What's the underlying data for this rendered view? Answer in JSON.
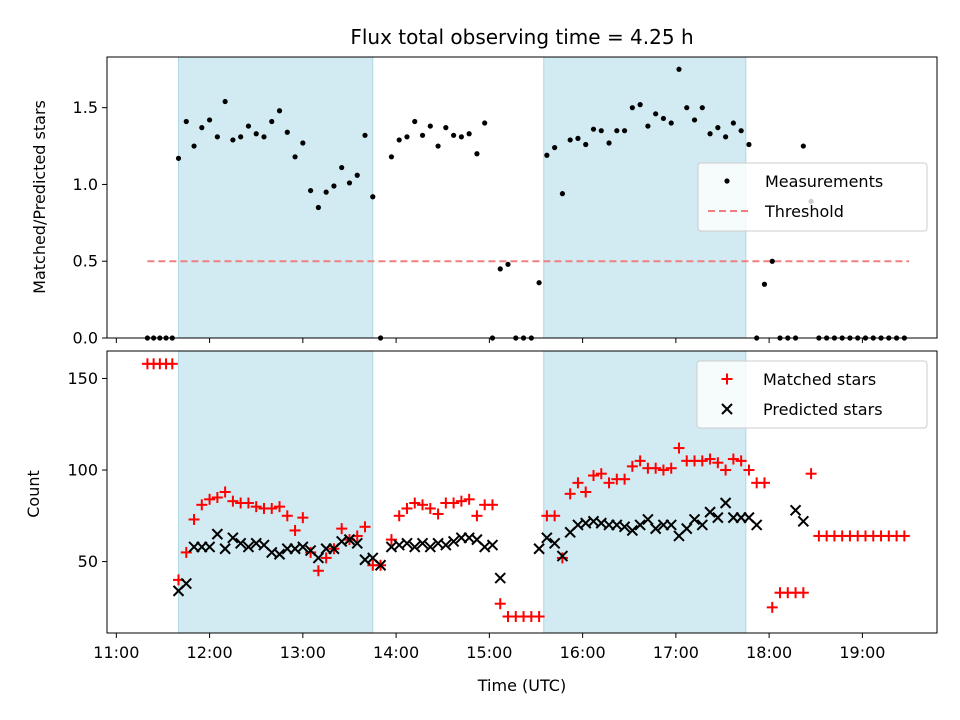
{
  "figure": {
    "title": "Flux total observing time = 4.25 h",
    "xlabel": "Time (UTC)"
  },
  "chart_data": [
    {
      "type": "scatter",
      "title": "Flux total observing time = 4.25 h",
      "ylabel": "Matched/Predicted stars",
      "xlim": [
        "10:54",
        "19:48"
      ],
      "ylim": [
        0,
        1.83
      ],
      "yticks": [
        "0.0",
        "0.5",
        "1.0",
        "1.5"
      ],
      "shaded_intervals": [
        [
          "11:40",
          "13:45"
        ],
        [
          "15:35",
          "17:45"
        ]
      ],
      "shade_color": "#add8e6",
      "legend_position": "center-right",
      "threshold": {
        "name": "Threshold",
        "value": 0.5,
        "x_start": "11:20",
        "x_end": "19:30",
        "color": "#f08080",
        "style": "dashed"
      },
      "series": [
        {
          "name": "Measurements",
          "color": "#000000",
          "marker": "dot",
          "x": [
            "11:20",
            "11:24",
            "11:28",
            "11:32",
            "11:36",
            "11:40",
            "11:45",
            "11:50",
            "11:55",
            "12:00",
            "12:05",
            "12:10",
            "12:15",
            "12:20",
            "12:25",
            "12:30",
            "12:35",
            "12:40",
            "12:45",
            "12:50",
            "12:55",
            "13:00",
            "13:05",
            "13:10",
            "13:15",
            "13:20",
            "13:25",
            "13:30",
            "13:35",
            "13:40",
            "13:45",
            "13:50",
            "13:57",
            "14:02",
            "14:07",
            "14:12",
            "14:17",
            "14:22",
            "14:27",
            "14:32",
            "14:37",
            "14:42",
            "14:47",
            "14:52",
            "14:57",
            "15:02",
            "15:07",
            "15:12",
            "15:17",
            "15:22",
            "15:27",
            "15:32",
            "15:37",
            "15:42",
            "15:47",
            "15:52",
            "15:57",
            "16:02",
            "16:07",
            "16:12",
            "16:17",
            "16:22",
            "16:27",
            "16:32",
            "16:37",
            "16:42",
            "16:47",
            "16:52",
            "16:57",
            "17:02",
            "17:07",
            "17:12",
            "17:17",
            "17:22",
            "17:27",
            "17:32",
            "17:37",
            "17:42",
            "17:47",
            "17:52",
            "17:57",
            "18:02",
            "18:07",
            "18:12",
            "18:17",
            "18:22",
            "18:27",
            "18:32",
            "18:37",
            "18:42",
            "18:47",
            "18:52",
            "18:57",
            "19:02",
            "19:07",
            "19:12",
            "19:17",
            "19:22",
            "19:27"
          ],
          "y": [
            0,
            0,
            0,
            0,
            0,
            1.17,
            1.41,
            1.25,
            1.37,
            1.42,
            1.31,
            1.54,
            1.29,
            1.31,
            1.38,
            1.33,
            1.31,
            1.41,
            1.48,
            1.34,
            1.18,
            1.27,
            0.96,
            0.85,
            0.95,
            0.99,
            1.11,
            1.01,
            1.06,
            1.32,
            0.92,
            0,
            1.18,
            1.29,
            1.31,
            1.41,
            1.32,
            1.38,
            1.25,
            1.37,
            1.32,
            1.31,
            1.33,
            1.2,
            1.4,
            0,
            0.45,
            0.48,
            0,
            0,
            0,
            0.36,
            1.19,
            1.24,
            0.94,
            1.29,
            1.3,
            1.26,
            1.36,
            1.35,
            1.27,
            1.35,
            1.35,
            1.5,
            1.52,
            1.38,
            1.46,
            1.43,
            1.4,
            1.75,
            1.5,
            1.42,
            1.5,
            1.33,
            1.37,
            1.31,
            1.4,
            1.35,
            1.26,
            0,
            0.35,
            0.5,
            0,
            0,
            0,
            1.25,
            0.89,
            0,
            0,
            0,
            0,
            0,
            0,
            0,
            0,
            0,
            0,
            0,
            0
          ]
        }
      ]
    },
    {
      "type": "scatter",
      "ylabel": "Count",
      "xlabel": "Time (UTC)",
      "xlim": [
        "10:54",
        "19:48"
      ],
      "ylim": [
        11,
        165
      ],
      "yticks": [
        "50",
        "100",
        "150"
      ],
      "xticks": [
        "11:00",
        "12:00",
        "13:00",
        "14:00",
        "15:00",
        "16:00",
        "17:00",
        "18:00",
        "19:00"
      ],
      "shaded_intervals": [
        [
          "11:40",
          "13:45"
        ],
        [
          "15:35",
          "17:45"
        ]
      ],
      "shade_color": "#add8e6",
      "legend_position": "top-right",
      "series": [
        {
          "name": "Matched stars",
          "color": "#ff0000",
          "marker": "plus",
          "x": [
            "11:20",
            "11:24",
            "11:28",
            "11:32",
            "11:36",
            "11:40",
            "11:45",
            "11:50",
            "11:55",
            "12:00",
            "12:05",
            "12:10",
            "12:15",
            "12:20",
            "12:25",
            "12:30",
            "12:35",
            "12:40",
            "12:45",
            "12:50",
            "12:55",
            "13:00",
            "13:05",
            "13:10",
            "13:15",
            "13:20",
            "13:25",
            "13:30",
            "13:35",
            "13:40",
            "13:45",
            "13:50",
            "13:57",
            "14:02",
            "14:07",
            "14:12",
            "14:17",
            "14:22",
            "14:27",
            "14:32",
            "14:37",
            "14:42",
            "14:47",
            "14:52",
            "14:57",
            "15:02",
            "15:07",
            "15:12",
            "15:17",
            "15:22",
            "15:27",
            "15:32",
            "15:37",
            "15:42",
            "15:47",
            "15:52",
            "15:57",
            "16:02",
            "16:07",
            "16:12",
            "16:17",
            "16:22",
            "16:27",
            "16:32",
            "16:37",
            "16:42",
            "16:47",
            "16:52",
            "16:57",
            "17:02",
            "17:07",
            "17:12",
            "17:17",
            "17:22",
            "17:27",
            "17:32",
            "17:37",
            "17:42",
            "17:47",
            "17:52",
            "17:57",
            "18:02",
            "18:07",
            "18:12",
            "18:17",
            "18:22",
            "18:27",
            "18:32",
            "18:37",
            "18:42",
            "18:47",
            "18:52",
            "18:57",
            "19:02",
            "19:07",
            "19:12",
            "19:17",
            "19:22",
            "19:27"
          ],
          "y": [
            158,
            158,
            158,
            158,
            158,
            40,
            55,
            73,
            81,
            84,
            85,
            88,
            83,
            82,
            82,
            80,
            79,
            79,
            80,
            75,
            67,
            74,
            55,
            45,
            52,
            57,
            68,
            62,
            64,
            69,
            48,
            48,
            62,
            75,
            79,
            82,
            81,
            79,
            76,
            82,
            82,
            83,
            84,
            75,
            81,
            81,
            27,
            20,
            20,
            20,
            20,
            20,
            75,
            75,
            52,
            87,
            93,
            88,
            97,
            98,
            93,
            95,
            95,
            102,
            105,
            101,
            101,
            100,
            101,
            112,
            105,
            105,
            105,
            106,
            104,
            100,
            106,
            105,
            100,
            93,
            93,
            25,
            33,
            33,
            33,
            33,
            98,
            64,
            64,
            64,
            64,
            64,
            64,
            64,
            64,
            64,
            64,
            64,
            64
          ]
        },
        {
          "name": "Predicted stars",
          "color": "#000000",
          "marker": "x",
          "x": [
            "11:40",
            "11:45",
            "11:50",
            "11:55",
            "12:00",
            "12:05",
            "12:10",
            "12:15",
            "12:20",
            "12:25",
            "12:30",
            "12:35",
            "12:40",
            "12:45",
            "12:50",
            "12:55",
            "13:00",
            "13:05",
            "13:10",
            "13:15",
            "13:20",
            "13:25",
            "13:30",
            "13:35",
            "13:40",
            "13:45",
            "13:50",
            "13:57",
            "14:02",
            "14:07",
            "14:12",
            "14:17",
            "14:22",
            "14:27",
            "14:32",
            "14:37",
            "14:42",
            "14:47",
            "14:52",
            "14:57",
            "15:02",
            "15:07",
            "15:32",
            "15:37",
            "15:42",
            "15:47",
            "15:52",
            "15:57",
            "16:02",
            "16:07",
            "16:12",
            "16:17",
            "16:22",
            "16:27",
            "16:32",
            "16:37",
            "16:42",
            "16:47",
            "16:52",
            "16:57",
            "17:02",
            "17:07",
            "17:12",
            "17:17",
            "17:22",
            "17:27",
            "17:32",
            "17:37",
            "17:42",
            "17:47",
            "17:52",
            "18:17",
            "18:22"
          ],
          "y": [
            34,
            38,
            58,
            58,
            58,
            65,
            57,
            63,
            60,
            58,
            60,
            59,
            55,
            54,
            57,
            57,
            58,
            56,
            52,
            57,
            57,
            61,
            62,
            60,
            51,
            52,
            48,
            58,
            59,
            60,
            58,
            60,
            58,
            60,
            59,
            61,
            63,
            63,
            62,
            58,
            59,
            41,
            57,
            63,
            60,
            53,
            66,
            70,
            71,
            72,
            71,
            70,
            70,
            69,
            67,
            70,
            73,
            68,
            70,
            70,
            64,
            68,
            73,
            70,
            77,
            74,
            82,
            74,
            74,
            74,
            70,
            78,
            72
          ]
        }
      ]
    }
  ]
}
